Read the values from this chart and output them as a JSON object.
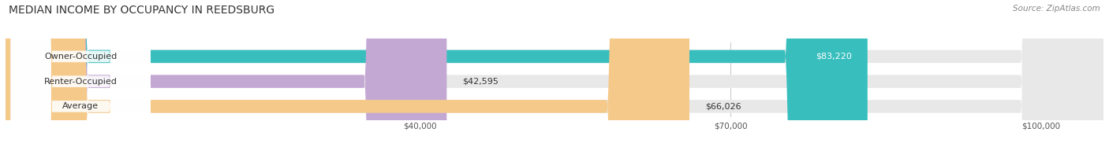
{
  "title": "MEDIAN INCOME BY OCCUPANCY IN REEDSBURG",
  "source": "Source: ZipAtlas.com",
  "categories": [
    "Owner-Occupied",
    "Renter-Occupied",
    "Average"
  ],
  "values": [
    83220,
    42595,
    66026
  ],
  "bar_colors": [
    "#39bebe",
    "#c4a8d4",
    "#f5c98a"
  ],
  "value_labels": [
    "$83,220",
    "$42,595",
    "$66,026"
  ],
  "xlim": [
    0,
    106000
  ],
  "xticks": [
    40000,
    70000,
    100000
  ],
  "xtick_labels": [
    "$40,000",
    "$70,000",
    "$100,000"
  ],
  "title_fontsize": 10,
  "source_fontsize": 7.5,
  "label_fontsize": 8,
  "value_fontsize": 8,
  "background_color": "#ffffff",
  "bar_bg_color": "#e8e8e8"
}
